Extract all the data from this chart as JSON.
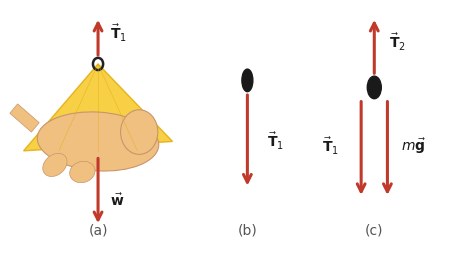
{
  "bg_color": "#ffffff",
  "arrow_color": "#c0392b",
  "dot_color": "#1a1a1a",
  "label_color": "#1a1a1a",
  "fig_label_color": "#555555",
  "panel_a_label": "(a)",
  "panel_b_label": "(b)",
  "panel_c_label": "(c)"
}
